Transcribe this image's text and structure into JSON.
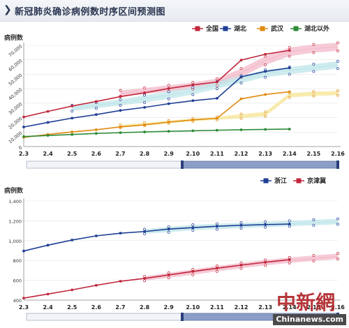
{
  "header": {
    "title": "新冠肺炎确诊病例数时序区间预测图"
  },
  "watermark": {
    "logo_text": "中新網",
    "url": "Chinanews.com"
  },
  "chart_data": [
    {
      "type": "line",
      "ylabel": "病例数",
      "categories": [
        "2.3",
        "2.4",
        "2.5",
        "2.6",
        "2.7",
        "2.8",
        "2.9",
        "2.10",
        "2.11",
        "2.12",
        "2.13",
        "2.14",
        "2.15",
        "2.16"
      ],
      "ylim": [
        0,
        70000
      ],
      "yticks": [
        "0",
        "10,000",
        "20,000",
        "30,000",
        "40,000",
        "50,000",
        "60,000",
        "70,000"
      ],
      "legend_position": "top-right",
      "series": [
        {
          "name": "全国",
          "color": "#c0273c",
          "band_color": "#f3b9c9",
          "actual": [
            20438,
            24324,
            28018,
            31161,
            34546,
            37198,
            40171,
            42638,
            44653,
            59804,
            63851,
            66492
          ],
          "predicted": [
            36800,
            38400,
            40200,
            42000,
            44600,
            51000,
            59500,
            65500,
            67800,
            69000
          ],
          "band": [
            [
              34800,
              38800
            ],
            [
              36300,
              40500
            ],
            [
              38000,
              42400
            ],
            [
              39800,
              44300
            ],
            [
              42200,
              47000
            ],
            [
              48000,
              54000
            ],
            [
              56500,
              62500
            ],
            [
              62500,
              68500
            ],
            [
              65000,
              70600
            ],
            [
              66200,
              71800
            ]
          ]
        },
        {
          "name": "湖北",
          "color": "#1f3f94",
          "band_color": "#bfe6ea",
          "actual": [
            13522,
            16678,
            19665,
            22112,
            24953,
            27100,
            29631,
            31728,
            33366,
            48206,
            51986,
            54406
          ],
          "predicted": [
            26500,
            28500,
            30500,
            33000,
            35500,
            38500,
            42500,
            46500,
            50500,
            52500,
            54500,
            56500
          ],
          "band": [
            [
              24500,
              28500
            ],
            [
              26500,
              30500
            ],
            [
              28500,
              32500
            ],
            [
              30500,
              35500
            ],
            [
              33000,
              38000
            ],
            [
              36000,
              41000
            ],
            [
              40000,
              45000
            ],
            [
              44000,
              49000
            ],
            [
              48000,
              53000
            ],
            [
              50000,
              55000
            ],
            [
              52000,
              57000
            ],
            [
              54000,
              59000
            ]
          ]
        },
        {
          "name": "武汉",
          "color": "#e08a0f",
          "band_color": "#f6e79c",
          "actual": [
            6384,
            8351,
            10117,
            11618,
            13603,
            14982,
            16902,
            18454,
            19558,
            32994,
            35991,
            37914
          ],
          "predicted": [
            14000,
            15500,
            17000,
            18500,
            19500,
            21000,
            22500,
            35500,
            36500,
            37000
          ],
          "band": [
            [
              13000,
              15000
            ],
            [
              14500,
              16500
            ],
            [
              16000,
              18000
            ],
            [
              17500,
              19500
            ],
            [
              18500,
              20500
            ],
            [
              19500,
              22500
            ],
            [
              21000,
              24000
            ],
            [
              34000,
              37000
            ],
            [
              35000,
              38000
            ],
            [
              35500,
              38500
            ]
          ]
        },
        {
          "name": "湖北以外",
          "color": "#2e8b3a",
          "band_color": "#b8e2bf",
          "actual": [
            6916,
            7646,
            8353,
            9049,
            9593,
            10098,
            10540,
            10910,
            11287,
            11598,
            11865,
            12086
          ]
        }
      ]
    },
    {
      "type": "line",
      "ylabel": "病例数",
      "categories": [
        "2.3",
        "2.4",
        "2.5",
        "2.6",
        "2.7",
        "2.8",
        "2.9",
        "2.10",
        "2.11",
        "2.12",
        "2.13",
        "2.14",
        "2.15",
        "2.16"
      ],
      "ylim": [
        400,
        1400
      ],
      "yticks": [
        "400",
        "600",
        "800",
        "1,000",
        "1,200",
        "1,400"
      ],
      "legend_position": "top-right",
      "series": [
        {
          "name": "浙江",
          "color": "#1f3f94",
          "band_color": "#bfe6ea",
          "actual": [
            895,
            954,
            1006,
            1048,
            1075,
            1092,
            1117,
            1131,
            1145,
            1155,
            1162,
            1167
          ],
          "predicted": [
            1085,
            1105,
            1130,
            1140,
            1150,
            1160,
            1170,
            1180,
            1190
          ],
          "band": [
            [
              1070,
              1115
            ],
            [
              1085,
              1140
            ],
            [
              1105,
              1160
            ],
            [
              1115,
              1170
            ],
            [
              1125,
              1180
            ],
            [
              1135,
              1190
            ],
            [
              1145,
              1200
            ],
            [
              1155,
              1210
            ],
            [
              1165,
              1220
            ]
          ]
        },
        {
          "name": "京津冀",
          "color": "#c0273c",
          "band_color": "#f3b9c9",
          "actual": [
            420,
            461,
            503,
            549,
            590,
            619,
            654,
            689,
            722,
            753,
            782,
            808
          ],
          "predicted": [
            615,
            650,
            680,
            715,
            745,
            775,
            800,
            820,
            840
          ],
          "band": [
            [
              595,
              640
            ],
            [
              625,
              675
            ],
            [
              655,
              710
            ],
            [
              690,
              745
            ],
            [
              720,
              775
            ],
            [
              750,
              805
            ],
            [
              775,
              830
            ],
            [
              795,
              850
            ],
            [
              815,
              870
            ]
          ]
        }
      ]
    }
  ]
}
